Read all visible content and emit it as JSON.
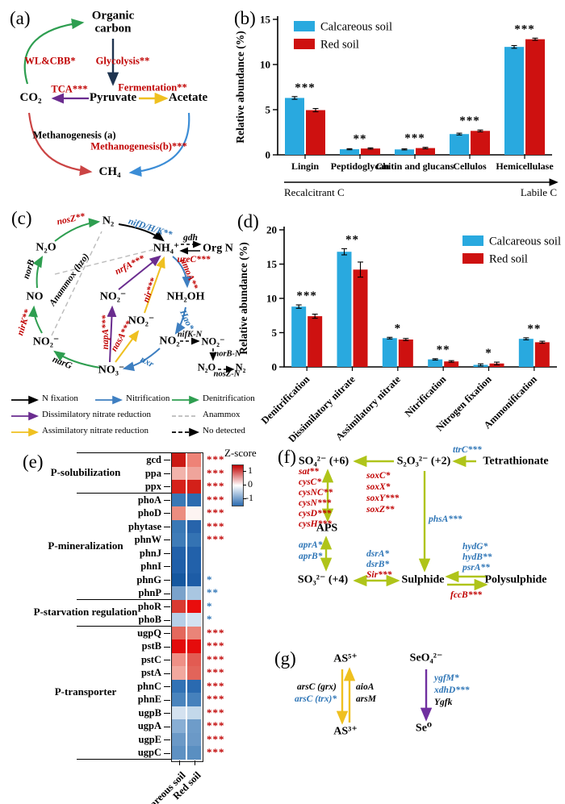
{
  "colors": {
    "calcareous_blue": "#29A9DF",
    "red_soil_red": "#CE1110",
    "gene_red": "#C00000",
    "gene_blue": "#2E75B6",
    "denitrification_green": "#2E9E50",
    "nitrification_blue": "#3E7FC1",
    "dissimilatory_purple": "#6A2C8F",
    "assimilatory_yellow": "#EFC020",
    "anammox_gray": "#BBBBBB",
    "glycolysis_navy": "#1F3450",
    "methanogenesis_a_red": "#CB4444",
    "methanogenesis_b_blue": "#3C8DD6",
    "sulfur_olive": "#AFC41A",
    "selenium_purple": "#7030A0"
  },
  "panel_a": {
    "label": "(a)",
    "nodes": {
      "organic_carbon": "Organic carbon",
      "pyruvate": "Pyruvate",
      "acetate": "Acetate",
      "co2": "CO₂",
      "ch4": "CH₄"
    },
    "edges": {
      "wl_cbb": "WL&CBB*",
      "glycolysis": "Glycolysis**",
      "tca": "TCA***",
      "fermentation": "Fermentation**",
      "meth_a": "Methanogenesis (a)",
      "meth_b": "Methanogenesis(b)***"
    }
  },
  "panel_b": {
    "label": "(b)"
  },
  "panel_c": {
    "label": "(c)",
    "nodes": {
      "n2": "N₂",
      "n2o": "N₂O",
      "no": "NO",
      "no2_left": "NO₂⁻",
      "no3": "NO₃⁻",
      "no2_mid": "NO₂⁻",
      "no2_mid2": "NO₂⁻",
      "nh4": "NH₄⁺",
      "org_n": "Org N",
      "nh2oh": "NH₂OH",
      "no2": "NO₂",
      "no2_r": "NO₂⁻",
      "n2o_br": "N₂O",
      "n2_br": "N₂"
    },
    "genes": {
      "nosZ": {
        "text": "nosZ**",
        "color": "red"
      },
      "nifDHK": {
        "text": "nifD/H/K**",
        "color": "blue"
      },
      "gdh": {
        "text": "gdh",
        "color": "black"
      },
      "ureC": {
        "text": "ureC***",
        "color": "red"
      },
      "norB": {
        "text": "norB",
        "color": "black"
      },
      "anammox": {
        "text": "Anammox (hzo)",
        "color": "black"
      },
      "nrfA": {
        "text": "nrfA***",
        "color": "red"
      },
      "amoA": {
        "text": "amoA**",
        "color": "red"
      },
      "nirK": {
        "text": "nirK**",
        "color": "red"
      },
      "nir": {
        "text": "nir***",
        "color": "red"
      },
      "hao": {
        "text": "Hao*",
        "color": "blue"
      },
      "napA": {
        "text": "napA***",
        "color": "red"
      },
      "nasA": {
        "text": "nasA***",
        "color": "red"
      },
      "nifKN": {
        "text": "nifK-N",
        "color": "black"
      },
      "norBN": {
        "text": "norB-N",
        "color": "black"
      },
      "narG": {
        "text": "narG",
        "color": "black"
      },
      "nxr": {
        "text": "nxr",
        "color": "blue"
      },
      "nosZN": {
        "text": "nosZ-N",
        "color": "black"
      }
    },
    "legend": [
      {
        "label": "N fixation",
        "color": "#000000",
        "dashed": false
      },
      {
        "label": "Nitrification",
        "color": "#3E7FC1",
        "dashed": false
      },
      {
        "label": "Denitrification",
        "color": "#2E9E50",
        "dashed": false
      },
      {
        "label": "Dissimilatory nitrate reduction",
        "color": "#6A2C8F",
        "dashed": false
      },
      {
        "label": "Anammox",
        "color": "#BBBBBB",
        "dashed": true
      },
      {
        "label": "Assimilatory nitrate reduction",
        "color": "#EFC020",
        "dashed": false
      },
      {
        "label": "No detected",
        "color": "#000000",
        "dashed": true
      }
    ]
  },
  "panel_d": {
    "label": "(d)"
  },
  "panel_e": {
    "label": "(e)"
  },
  "panel_f": {
    "label": "(f)",
    "nodes": {
      "so4": "SO₄²⁻ (+6)",
      "s2o3": "S₂O₃²⁻ (+2)",
      "tetrathionate": "Tetrathionate",
      "aps": "APS",
      "so3": "SO₃²⁻ (+4)",
      "sulphide": "Sulphide",
      "polysulphide": "Polysulphide"
    },
    "genes": {
      "ttrC": {
        "text": "ttrC***",
        "color": "blue"
      },
      "sox": [
        {
          "text": "soxC*",
          "color": "red"
        },
        {
          "text": "soxX*",
          "color": "red"
        },
        {
          "text": "soxY***",
          "color": "red"
        },
        {
          "text": "soxZ**",
          "color": "red"
        }
      ],
      "sat_cys": [
        {
          "text": "sat**",
          "color": "red"
        },
        {
          "text": "cysC*",
          "color": "red"
        },
        {
          "text": "cysNC**",
          "color": "red"
        },
        {
          "text": "cysN***",
          "color": "red"
        },
        {
          "text": "cysD***",
          "color": "red"
        },
        {
          "text": "cysH***",
          "color": "red"
        }
      ],
      "apr": [
        {
          "text": "aprA*",
          "color": "blue"
        },
        {
          "text": "aprB*",
          "color": "blue"
        }
      ],
      "phsA": {
        "text": "phsA***",
        "color": "blue"
      },
      "dsr": [
        {
          "text": "dsrA*",
          "color": "blue"
        },
        {
          "text": "dsrB*",
          "color": "blue"
        },
        {
          "text": "Sir***",
          "color": "red"
        }
      ],
      "hyd": [
        {
          "text": "hydG*",
          "color": "blue"
        },
        {
          "text": "hydB**",
          "color": "blue"
        },
        {
          "text": "psrA**",
          "color": "blue"
        }
      ],
      "fccB": {
        "text": "fccB***",
        "color": "red"
      }
    }
  },
  "panel_g": {
    "label": "(g)",
    "nodes": {
      "as5": "AS⁵⁺",
      "as3": "AS³⁺",
      "seo4": "SeO₄²⁻",
      "se0": "Se⁰"
    },
    "genes": {
      "arsC_grx": {
        "text": "arsC (grx)",
        "color": "black"
      },
      "arsC_trx": {
        "text": "arsC (trx)*",
        "color": "blue"
      },
      "aioA": {
        "text": "aioA",
        "color": "black"
      },
      "arsM": {
        "text": "arsM",
        "color": "black"
      },
      "ygfM": {
        "text": "ygfM*",
        "color": "blue"
      },
      "xdhD": {
        "text": "xdhD***",
        "color": "blue"
      },
      "Ygfk": {
        "text": "Ygfk",
        "color": "black"
      }
    }
  },
  "chart_data": [
    {
      "id": "b",
      "type": "bar",
      "ylabel": "Relative abundance (%)",
      "ylim": [
        0,
        15
      ],
      "yticks": [
        0,
        5,
        10,
        15
      ],
      "categories": [
        "Lingin",
        "Peptidoglycan",
        "Chitin and glucans",
        "Cellulos",
        "Hemicellulase"
      ],
      "series": [
        {
          "name": "Calcareous soil",
          "color": "#29A9DF",
          "values": [
            6.3,
            0.62,
            0.6,
            2.3,
            11.95
          ],
          "errors": [
            0.15,
            0.06,
            0.06,
            0.1,
            0.15
          ]
        },
        {
          "name": "Red soil",
          "color": "#CE1110",
          "values": [
            4.95,
            0.7,
            0.75,
            2.65,
            12.8
          ],
          "errors": [
            0.18,
            0.07,
            0.08,
            0.1,
            0.12
          ]
        }
      ],
      "significance": [
        "***",
        "**",
        "***",
        "***",
        "***"
      ],
      "legend_position": "top-left-inside",
      "axis_annotation": {
        "left": "Recalcitrant C",
        "right": "Labile C"
      }
    },
    {
      "id": "d",
      "type": "bar",
      "ylabel": "Relative abundance (%)",
      "ylim": [
        0,
        20
      ],
      "yticks": [
        0,
        5,
        10,
        15,
        20
      ],
      "categories": [
        "Denitrification",
        "Dissimilatory nitrate",
        "Assimilatory nitrate",
        "Nitrification",
        "Nitrogen fixation",
        "Ammonification"
      ],
      "series": [
        {
          "name": "Calcareous soil",
          "color": "#29A9DF",
          "values": [
            8.8,
            16.8,
            4.2,
            1.1,
            0.3,
            4.1
          ],
          "errors": [
            0.25,
            0.45,
            0.12,
            0.1,
            0.15,
            0.15
          ]
        },
        {
          "name": "Red soil",
          "color": "#CE1110",
          "values": [
            7.4,
            14.2,
            4.0,
            0.8,
            0.5,
            3.6
          ],
          "errors": [
            0.3,
            1.1,
            0.15,
            0.12,
            0.2,
            0.15
          ]
        }
      ],
      "significance": [
        "***",
        "**",
        "*",
        "**",
        "*",
        "**"
      ],
      "legend_position": "top-right-inside"
    },
    {
      "id": "e",
      "type": "heatmap",
      "columns": [
        "Calcareous soil",
        "Red soil"
      ],
      "legend": {
        "title": "Z-score",
        "ticks": [
          "1",
          "0",
          "-1"
        ]
      },
      "groups": [
        {
          "label": "P-solubilization",
          "start": 0,
          "end": 2
        },
        {
          "label": "P-mineralization",
          "start": 3,
          "end": 10
        },
        {
          "label": "P-starvation regulation",
          "start": 11,
          "end": 12
        },
        {
          "label": "P-transporter",
          "start": 13,
          "end": 22
        }
      ],
      "rows": [
        {
          "gene": "gcd",
          "colors": [
            "#CB1A14",
            "#EE8377"
          ],
          "sig": "***",
          "sig_color": "red"
        },
        {
          "gene": "ppa",
          "colors": [
            "#F2B3AB",
            "#EFA49B"
          ],
          "sig": "***",
          "sig_color": "red"
        },
        {
          "gene": "ppx",
          "colors": [
            "#D6211A",
            "#D32019"
          ],
          "sig": "***",
          "sig_color": "red"
        },
        {
          "gene": "phoA",
          "colors": [
            "#3A78B5",
            "#2D6CB0"
          ],
          "sig": "***",
          "sig_color": "red"
        },
        {
          "gene": "phoD",
          "colors": [
            "#EC8D80",
            "#FDF4F2"
          ],
          "sig": "***",
          "sig_color": "red"
        },
        {
          "gene": "phytase",
          "colors": [
            "#3A78B5",
            "#2764AB"
          ],
          "sig": "***",
          "sig_color": "red"
        },
        {
          "gene": "phnW",
          "colors": [
            "#3F7CB8",
            "#3473B3"
          ],
          "sig": "***",
          "sig_color": "red"
        },
        {
          "gene": "phnJ",
          "colors": [
            "#2261AA",
            "#2261AA"
          ],
          "sig": "",
          "sig_color": ""
        },
        {
          "gene": "phnI",
          "colors": [
            "#1F5FA9",
            "#2261AA"
          ],
          "sig": "",
          "sig_color": ""
        },
        {
          "gene": "phnG",
          "colors": [
            "#15579F",
            "#1D5CA6"
          ],
          "sig": "*",
          "sig_color": "blue"
        },
        {
          "gene": "phnP",
          "colors": [
            "#7AA2CB",
            "#A9C6E1"
          ],
          "sig": "**",
          "sig_color": "blue"
        },
        {
          "gene": "phoR",
          "colors": [
            "#D93A31",
            "#E90D0D"
          ],
          "sig": "*",
          "sig_color": "blue"
        },
        {
          "gene": "phoB",
          "colors": [
            "#B7CFE7",
            "#D3E2F1"
          ],
          "sig": "*",
          "sig_color": "blue"
        },
        {
          "gene": "ugpQ",
          "colors": [
            "#E4685C",
            "#EA8478"
          ],
          "sig": "***",
          "sig_color": "red"
        },
        {
          "gene": "pstB",
          "colors": [
            "#E30B0B",
            "#E50C0C"
          ],
          "sig": "***",
          "sig_color": "red"
        },
        {
          "gene": "pstC",
          "colors": [
            "#EF9086",
            "#E25B52"
          ],
          "sig": "***",
          "sig_color": "red"
        },
        {
          "gene": "pstA",
          "colors": [
            "#F2A89E",
            "#E2645A"
          ],
          "sig": "***",
          "sig_color": "red"
        },
        {
          "gene": "phnC",
          "colors": [
            "#3272B5",
            "#2A6AB0"
          ],
          "sig": "***",
          "sig_color": "red"
        },
        {
          "gene": "phnE",
          "colors": [
            "#4A84BD",
            "#4681BC"
          ],
          "sig": "***",
          "sig_color": "red"
        },
        {
          "gene": "ugpB",
          "colors": [
            "#D4E2F0",
            "#C3D8EA"
          ],
          "sig": "***",
          "sig_color": "red"
        },
        {
          "gene": "ugpA",
          "colors": [
            "#88AED4",
            "#6E9CC9"
          ],
          "sig": "***",
          "sig_color": "red"
        },
        {
          "gene": "ugpE",
          "colors": [
            "#6B99C7",
            "#6B99C7"
          ],
          "sig": "***",
          "sig_color": "red"
        },
        {
          "gene": "ugpC",
          "colors": [
            "#5E91C3",
            "#5A8FC1"
          ],
          "sig": "***",
          "sig_color": "red"
        }
      ]
    }
  ]
}
